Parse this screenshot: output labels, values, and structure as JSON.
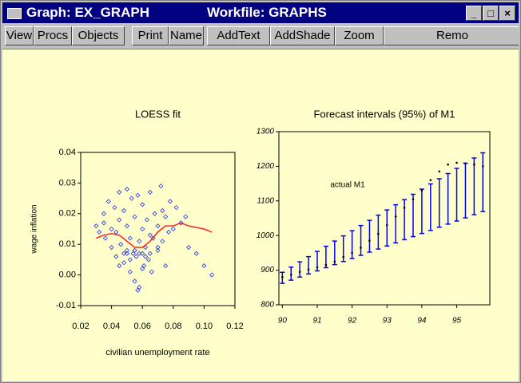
{
  "window": {
    "title": "Graph: EX_GRAPH",
    "workfile": "Workfile: GRAPHS"
  },
  "toolbar": [
    "View",
    "Procs",
    "Objects",
    "Print",
    "Name",
    "AddText",
    "AddShade",
    "Zoom",
    "Remo"
  ],
  "chart_data": [
    {
      "type": "scatter",
      "title": "LOESS fit",
      "x_label": "civilian unemployment rate",
      "y_label": "wage inflation",
      "xlim": [
        0.02,
        0.12
      ],
      "ylim": [
        -0.01,
        0.04
      ],
      "xticks": [
        0.02,
        0.04,
        0.06,
        0.08,
        {
          "value": 0.1,
          "label": "0.10"
        },
        0.12
      ],
      "yticks": [
        -0.01,
        {
          "value": 0,
          "label": "0.00"
        },
        0.01,
        0.02,
        0.03,
        0.04
      ],
      "series": [
        {
          "style": "points",
          "color": "#2233ee",
          "x": [
            0.03,
            0.032,
            0.035,
            0.036,
            0.038,
            0.04,
            0.04,
            0.042,
            0.043,
            0.045,
            0.045,
            0.046,
            0.048,
            0.048,
            0.05,
            0.05,
            0.05,
            0.052,
            0.052,
            0.053,
            0.054,
            0.055,
            0.055,
            0.055,
            0.056,
            0.057,
            0.058,
            0.058,
            0.06,
            0.06,
            0.06,
            0.061,
            0.062,
            0.063,
            0.064,
            0.065,
            0.065,
            0.066,
            0.068,
            0.07,
            0.07,
            0.072,
            0.073,
            0.075,
            0.075,
            0.077,
            0.078,
            0.08,
            0.082,
            0.085,
            0.088,
            0.09,
            0.095,
            0.1,
            0.105,
            0.035,
            0.045,
            0.05,
            0.055,
            0.06,
            0.065,
            0.07,
            0.052,
            0.058,
            0.062,
            0.048,
            0.043,
            0.057,
            0.067,
            0.073
          ],
          "values": [
            0.016,
            0.014,
            0.02,
            0.012,
            0.024,
            0.015,
            0.009,
            0.022,
            0.006,
            0.018,
            0.027,
            0.01,
            0.004,
            0.021,
            0.008,
            0.016,
            0.028,
            0.001,
            0.012,
            0.025,
            0.007,
            -0.002,
            0.008,
            0.019,
            0.006,
            0.026,
            0.011,
            -0.004,
            0.007,
            0.015,
            0.023,
            0.003,
            0.009,
            0.018,
            0.005,
            0.013,
            0.027,
            0.001,
            0.02,
            0.008,
            0.016,
            0.029,
            0.011,
            0.003,
            0.019,
            0.014,
            0.024,
            0.015,
            0.022,
            0.017,
            0.019,
            0.009,
            0.007,
            0.003,
            0,
            0.017,
            0.003,
            0.007,
            0.008,
            0.002,
            0.007,
            0.009,
            0.005,
            0.007,
            0.006,
            0.007,
            0.014,
            -0.005,
            0.012,
            0.021
          ]
        },
        {
          "style": "line",
          "color": "#ff2020",
          "x": [
            0.03,
            0.035,
            0.04,
            0.045,
            0.05,
            0.055,
            0.06,
            0.065,
            0.07,
            0.075,
            0.08,
            0.085,
            0.09,
            0.1,
            0.105
          ],
          "values": [
            0.012,
            0.013,
            0.0135,
            0.013,
            0.011,
            0.009,
            0.009,
            0.011,
            0.014,
            0.016,
            0.016,
            0.017,
            0.016,
            0.015,
            0.014
          ]
        }
      ]
    },
    {
      "type": "errorbar",
      "title": "Forecast intervals (95%) of M1",
      "annotation": "actual M1",
      "xlim": [
        89.9,
        95.95
      ],
      "ylim": [
        800,
        1300
      ],
      "xticks": [
        90,
        91,
        92,
        93,
        94,
        95
      ],
      "yticks": [
        800,
        900,
        1000,
        1100,
        1200,
        1300
      ],
      "x": [
        90,
        90.25,
        90.5,
        90.75,
        91,
        91.25,
        91.5,
        91.75,
        92,
        92.25,
        92.5,
        92.75,
        93,
        93.25,
        93.5,
        93.75,
        94,
        94.25,
        94.5,
        94.75,
        95,
        95.25,
        95.5,
        95.75
      ],
      "series": [
        {
          "style": "errorbar",
          "color": "#0000ff",
          "values": [
            878,
            890,
            902,
            914,
            926,
            938,
            950,
            962,
            974,
            986,
            998,
            1010,
            1022,
            1034,
            1046,
            1058,
            1070,
            1082,
            1094,
            1106,
            1118,
            1130,
            1142,
            1154
          ],
          "errors": [
            16,
            19,
            22,
            25,
            28,
            31,
            34,
            37,
            40,
            43,
            46,
            49,
            52,
            55,
            58,
            61,
            64,
            67,
            70,
            73,
            76,
            79,
            82,
            85
          ]
        },
        {
          "style": "points",
          "color": "#000000",
          "values": [
            880,
            887,
            895,
            902,
            908,
            915,
            925,
            938,
            950,
            965,
            985,
            1005,
            1030,
            1055,
            1080,
            1105,
            1130,
            1160,
            1185,
            1205,
            1210,
            1208,
            1205,
            1200
          ]
        }
      ]
    }
  ]
}
